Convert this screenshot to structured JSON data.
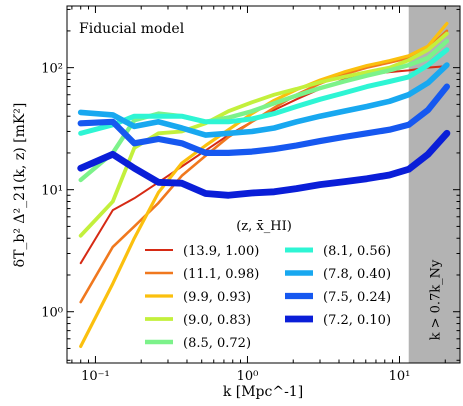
{
  "chart_data": {
    "type": "line",
    "title": "Fiducial model",
    "xlabel": "k [Mpc^-1]",
    "ylabel": "δT_b² Δ²_21(k, z) [mK²]",
    "xscale": "log",
    "yscale": "log",
    "xlim": [
      0.065,
      25
    ],
    "ylim": [
      0.38,
      320
    ],
    "x_ticks": [
      {
        "value": 0.1,
        "label": "10⁻¹"
      },
      {
        "value": 1,
        "label": "10⁰"
      },
      {
        "value": 10,
        "label": "10¹"
      }
    ],
    "y_ticks": [
      {
        "value": 1,
        "label": "10⁰"
      },
      {
        "value": 10,
        "label": "10¹"
      },
      {
        "value": 100,
        "label": "10²"
      }
    ],
    "legend_title": "(z, x̄_HI)",
    "legend_position": "bottom-center",
    "shaded_region": {
      "x_from": 11.5,
      "x_to": 25,
      "label": "k > 0.7k_Ny",
      "color": "#b3b3b3"
    },
    "x": [
      0.08,
      0.13,
      0.18,
      0.26,
      0.37,
      0.53,
      0.75,
      1.07,
      1.5,
      2.1,
      3.0,
      4.3,
      6.1,
      8.6,
      11.5,
      15.4,
      20.5
    ],
    "series": [
      {
        "name": "(13.9, 1.00)",
        "color": "#d62a14",
        "values": [
          2.5,
          6.8,
          8.5,
          11.5,
          15.5,
          21,
          28,
          36,
          45,
          55,
          67,
          80,
          88,
          92,
          95,
          100,
          103
        ]
      },
      {
        "name": "(11.1, 0.98)",
        "color": "#f0781e",
        "values": [
          1.2,
          3.4,
          5.0,
          7.8,
          13,
          19,
          27,
          36,
          47,
          60,
          74,
          88,
          100,
          110,
          120,
          145,
          200
        ]
      },
      {
        "name": "(9.9, 0.93)",
        "color": "#fbc00e",
        "values": [
          0.52,
          1.7,
          4.0,
          9.5,
          16.5,
          23,
          31,
          42,
          54,
          66,
          79,
          92,
          104,
          114,
          125,
          150,
          230
        ]
      },
      {
        "name": "(9.0, 0.83)",
        "color": "#c3f03c",
        "values": [
          4.2,
          8.0,
          22,
          29,
          30,
          35,
          44,
          52,
          60,
          67,
          76,
          84,
          92,
          100,
          115,
          140,
          190
        ]
      },
      {
        "name": "(8.5, 0.72)",
        "color": "#7cf28a",
        "values": [
          12,
          20,
          37,
          42,
          40,
          36,
          39,
          44,
          51,
          59,
          68,
          77,
          86,
          95,
          105,
          120,
          165
        ]
      },
      {
        "name": "(8.1, 0.56)",
        "color": "#2ef5d4",
        "values": [
          29,
          34,
          40,
          40,
          40,
          36,
          36,
          38,
          42,
          48,
          55,
          62,
          70,
          77,
          84,
          105,
          140
        ]
      },
      {
        "name": "(7.8, 0.40)",
        "color": "#18a8f0",
        "values": [
          43,
          41,
          33,
          36,
          32,
          28,
          29,
          30,
          32,
          36,
          40,
          44,
          48,
          53,
          60,
          75,
          105
        ]
      },
      {
        "name": "(7.5, 0.24)",
        "color": "#1658f0",
        "values": [
          35,
          36,
          24,
          26,
          24,
          20,
          20,
          20.5,
          21.5,
          23,
          25,
          27,
          29,
          31,
          34,
          45,
          70
        ]
      },
      {
        "name": "(7.2, 0.10)",
        "color": "#0a1ed8",
        "values": [
          15,
          19.5,
          15,
          11.5,
          11.3,
          9.3,
          9.0,
          9.4,
          9.6,
          10.2,
          11.0,
          11.6,
          12.3,
          13.2,
          14.7,
          19.5,
          29
        ]
      }
    ]
  }
}
